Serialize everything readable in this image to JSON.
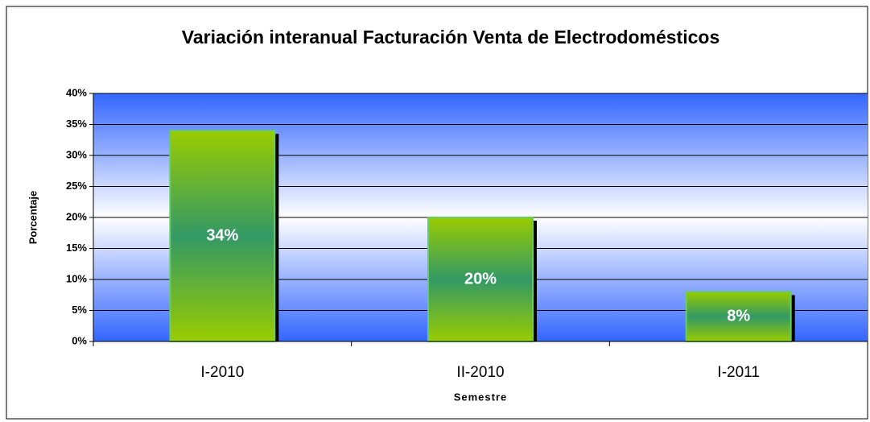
{
  "chart_data": {
    "type": "bar",
    "title": "Variación interanual Facturación Venta de Electrodomésticos",
    "y_label": "Porcentaje",
    "x_label": "Semestre",
    "categories": [
      "I-2010",
      "II-2010",
      "I-2011"
    ],
    "values": [
      34,
      20,
      8
    ],
    "value_labels": [
      "34%",
      "20%",
      "8%"
    ],
    "color": "#339966",
    "ylim": [
      0,
      40
    ],
    "yticks": [
      {
        "value": 0,
        "label": "0%"
      },
      {
        "value": 5,
        "label": "5%"
      },
      {
        "value": 10,
        "label": "10%"
      },
      {
        "value": 15,
        "label": "15%"
      },
      {
        "value": 20,
        "label": "20%"
      },
      {
        "value": 25,
        "label": "25%"
      },
      {
        "value": 30,
        "label": "30%"
      },
      {
        "value": 35,
        "label": "35%"
      },
      {
        "value": 40,
        "label": "40%"
      }
    ],
    "grid": true
  }
}
